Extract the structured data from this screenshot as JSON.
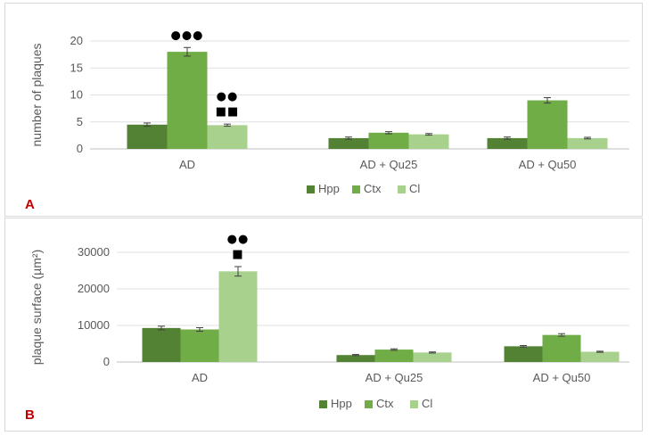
{
  "colors": {
    "Hpp": "#548235",
    "Ctx": "#70ad47",
    "Cl": "#a9d18e",
    "grid": "#e0e0e0",
    "axis": "#bfbfbf",
    "panel_label": "#c00000"
  },
  "chart_data": [
    {
      "type": "bar",
      "panel_label": "A",
      "title": "",
      "xlabel": "",
      "ylabel": "number of plaques",
      "ylim": [
        0,
        20
      ],
      "yticks": [
        "0",
        "5",
        "10",
        "15",
        "20"
      ],
      "grid": true,
      "legend_position": "bottom",
      "categories": [
        "AD",
        "AD + Qu25",
        "AD + Qu50"
      ],
      "series": [
        {
          "name": "Hpp",
          "values": [
            4.5,
            2.0,
            2.0
          ],
          "errors": [
            0.3,
            0.2,
            0.2
          ]
        },
        {
          "name": "Ctx",
          "values": [
            18.0,
            3.0,
            9.0
          ],
          "errors": [
            0.8,
            0.2,
            0.5
          ]
        },
        {
          "name": "Cl",
          "values": [
            4.4,
            2.7,
            2.0
          ],
          "errors": [
            0.2,
            0.15,
            0.15
          ]
        }
      ],
      "annotations": [
        {
          "category": "AD",
          "series": "Ctx",
          "lines": [
            "●●●"
          ]
        },
        {
          "category": "AD",
          "series": "Cl",
          "lines": [
            "●●",
            "■■"
          ]
        }
      ]
    },
    {
      "type": "bar",
      "panel_label": "B",
      "title": "",
      "xlabel": "",
      "ylabel": "plaque surface (µm²)",
      "ylim": [
        0,
        30000
      ],
      "yticks": [
        "0",
        "10000",
        "20000",
        "30000"
      ],
      "grid": true,
      "legend_position": "bottom",
      "categories": [
        "AD",
        "AD + Qu25",
        "AD + Qu50"
      ],
      "series": [
        {
          "name": "Hpp",
          "values": [
            9300,
            1900,
            4300
          ],
          "errors": [
            500,
            150,
            200
          ]
        },
        {
          "name": "Ctx",
          "values": [
            8900,
            3400,
            7400
          ],
          "errors": [
            500,
            200,
            350
          ]
        },
        {
          "name": "Cl",
          "values": [
            24800,
            2600,
            2800
          ],
          "errors": [
            1300,
            150,
            150
          ]
        }
      ],
      "annotations": [
        {
          "category": "AD",
          "series": "Cl",
          "lines": [
            "●●",
            "■"
          ]
        }
      ]
    }
  ]
}
